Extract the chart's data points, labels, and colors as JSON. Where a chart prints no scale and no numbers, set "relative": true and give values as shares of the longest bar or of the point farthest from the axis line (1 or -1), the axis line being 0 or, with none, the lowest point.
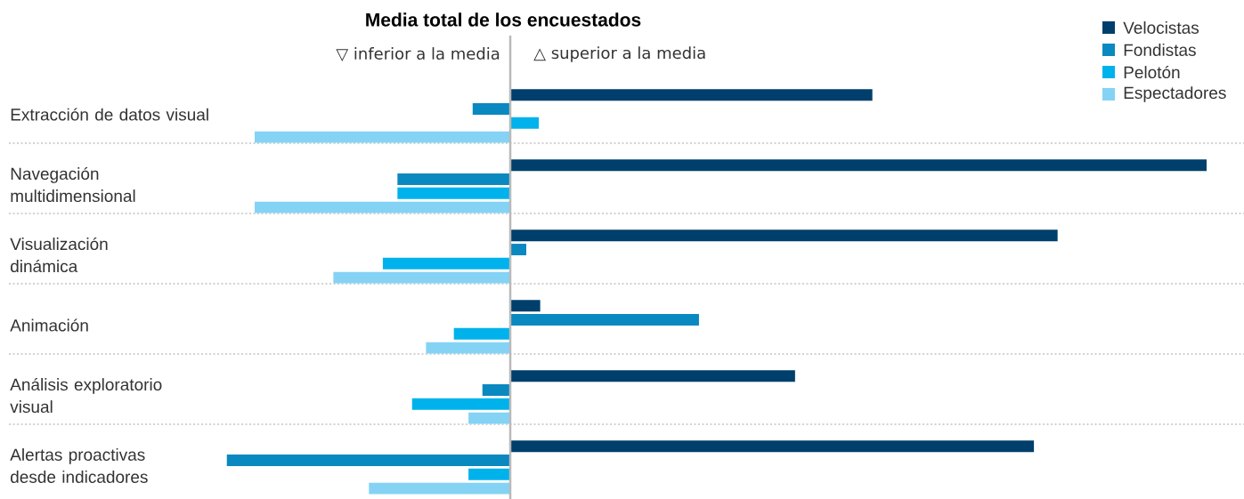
{
  "chart_data": {
    "type": "bar",
    "orientation": "horizontal",
    "relative": true,
    "title": "Media total de los encuestados",
    "annotations": [
      "▽ inferior a la media",
      "△ superior a la media"
    ],
    "legend": "top right",
    "categories": [
      "Extracción de datos visual",
      "Navegación\nmultidimensional",
      "Visualización\ndinámica",
      "Animación",
      "Análisis exploratorio\nvisual",
      "Alertas proactivas\ndesde indicadores"
    ],
    "series": [
      {
        "name": "Velocistas",
        "color": "#003f6b",
        "values": [
          0.52,
          1.0,
          0.786,
          0.043,
          0.409,
          0.752
        ]
      },
      {
        "name": "Fondistas",
        "color": "#0a88c0",
        "values": [
          -0.054,
          -0.162,
          0.023,
          0.271,
          -0.04,
          -0.407
        ]
      },
      {
        "name": "Pelotón",
        "color": "#00b2ec",
        "values": [
          0.041,
          -0.162,
          -0.183,
          -0.081,
          -0.141,
          -0.06
        ]
      },
      {
        "name": "Espectadores",
        "color": "#84d3f5",
        "values": [
          -0.367,
          -0.367,
          -0.254,
          -0.121,
          -0.06,
          -0.203
        ]
      }
    ]
  }
}
